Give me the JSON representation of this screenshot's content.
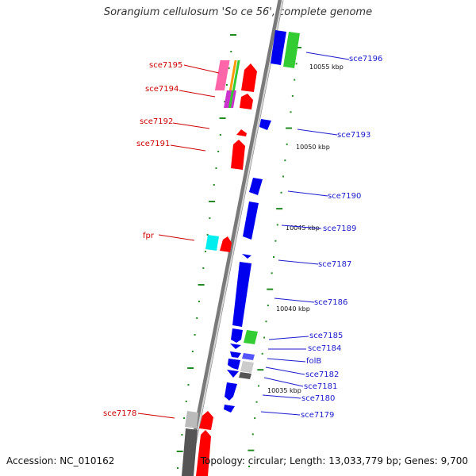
{
  "title": "Sorangium cellulosum 'So ce 56', complete genome",
  "footer": {
    "accession": "Accession: NC_010162",
    "topology": "Topology: circular; Length: 13,033,779 bp; Genes: 9,700"
  },
  "colors": {
    "forward": "#ff0000",
    "reverse": "#0000ff",
    "forward_label": "#cc0000",
    "reverse_label": "#1a1acc",
    "backbone": "#888888",
    "ticks": "#228b22",
    "cyan_gene": "#00dddd",
    "green_gene": "#33cc33",
    "gray_gene": "#aaaaaa"
  },
  "ticks": [
    "10055 kbp",
    "10050 kbp",
    "10045 kbp",
    "10040 kbp",
    "10035 kbp"
  ],
  "genes": {
    "left": [
      "sce7195",
      "sce7194",
      "sce7192",
      "sce7191",
      "fpr",
      "sce7178"
    ],
    "right": [
      "sce7196",
      "sce7193",
      "sce7190",
      "sce7189",
      "sce7187",
      "sce7186",
      "sce7185",
      "sce7184",
      "folB",
      "sce7182",
      "sce7181",
      "sce7180",
      "sce7179"
    ]
  }
}
